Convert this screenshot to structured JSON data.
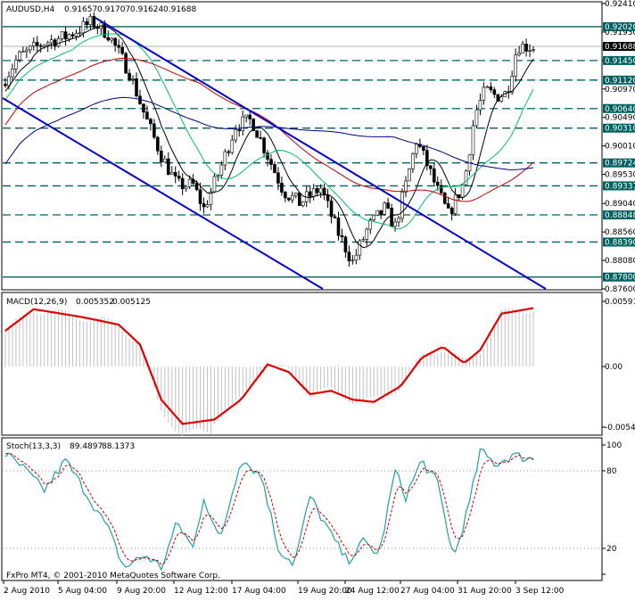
{
  "chart_data": [
    {
      "type": "candlestick",
      "panel": "price",
      "header": {
        "symbol": "AUDUSD,H4",
        "open": "0.91657",
        "high": "0.91707",
        "low": "0.91624",
        "close": "0.91688"
      },
      "ylim": [
        0.876,
        0.9241
      ],
      "y_ticks": [
        "0.92410",
        "0.91930",
        "0.91688",
        "0.91450",
        "0.90970",
        "0.90490",
        "0.90010",
        "0.89530",
        "0.89040",
        "0.88560",
        "0.88080",
        "0.87600"
      ],
      "horizontal_levels": [
        {
          "value": 0.9202,
          "label": "0.92020",
          "style": "solid",
          "color": "#006060"
        },
        {
          "value": 0.9145,
          "label": "0.91450",
          "style": "dashed",
          "color": "#006060"
        },
        {
          "value": 0.9112,
          "label": "0.91120",
          "style": "dashed",
          "color": "#006060"
        },
        {
          "value": 0.9064,
          "label": "0.90640",
          "style": "dashed",
          "color": "#006060"
        },
        {
          "value": 0.9031,
          "label": "0.90310",
          "style": "dashed",
          "color": "#006060"
        },
        {
          "value": 0.89724,
          "label": "0.89724",
          "style": "dashed",
          "color": "#006060"
        },
        {
          "value": 0.89337,
          "label": "0.89337",
          "style": "dashed",
          "color": "#006060"
        },
        {
          "value": 0.88848,
          "label": "0.88848",
          "style": "dashed",
          "color": "#006060"
        },
        {
          "value": 0.8839,
          "label": "0.88390",
          "style": "dashed",
          "color": "#006060"
        },
        {
          "value": 0.878,
          "label": "0.87800",
          "style": "solid",
          "color": "#006060"
        }
      ],
      "current_price": {
        "value": 0.91688,
        "label": "0.91688"
      },
      "channel_lines_color": "#0000cc",
      "moving_average_colors": [
        "#000000",
        "#00c060",
        "#c00000",
        "#000080"
      ],
      "x_ticks": [
        "2 Aug 2010",
        "5 Aug 04:00",
        "9 Aug 20:00",
        "12 Aug 12:00",
        "17 Aug 04:00",
        "19 Aug 20:00",
        "24 Aug 12:00",
        "27 Aug 04:00",
        "31 Aug 20:00",
        "3 Sep 12:00"
      ]
    },
    {
      "type": "histogram+line",
      "panel": "macd",
      "header": {
        "name": "MACD(12,26,9)",
        "v1": "0.005352",
        "v2": "0.005125"
      },
      "ylim": [
        -0.00549,
        0.00591
      ],
      "y_ticks": [
        "0.00591",
        "0.00",
        "-0.00549"
      ],
      "histogram_color": "#c0c0c0",
      "signal_color": "#dd0000"
    },
    {
      "type": "line",
      "panel": "stochastic",
      "header": {
        "name": "Stoch(13,3,3)",
        "v1": "89.4897",
        "v2": "88.1373"
      },
      "ylim": [
        0,
        100
      ],
      "y_ticks": [
        "100",
        "80",
        "20",
        "0"
      ],
      "main_color": "#20a0a0",
      "signal_color": "#cc0000"
    }
  ],
  "footer": {
    "copyright": "FxPro MT4, © 2001-2010 MetaQuotes Software Corp."
  }
}
